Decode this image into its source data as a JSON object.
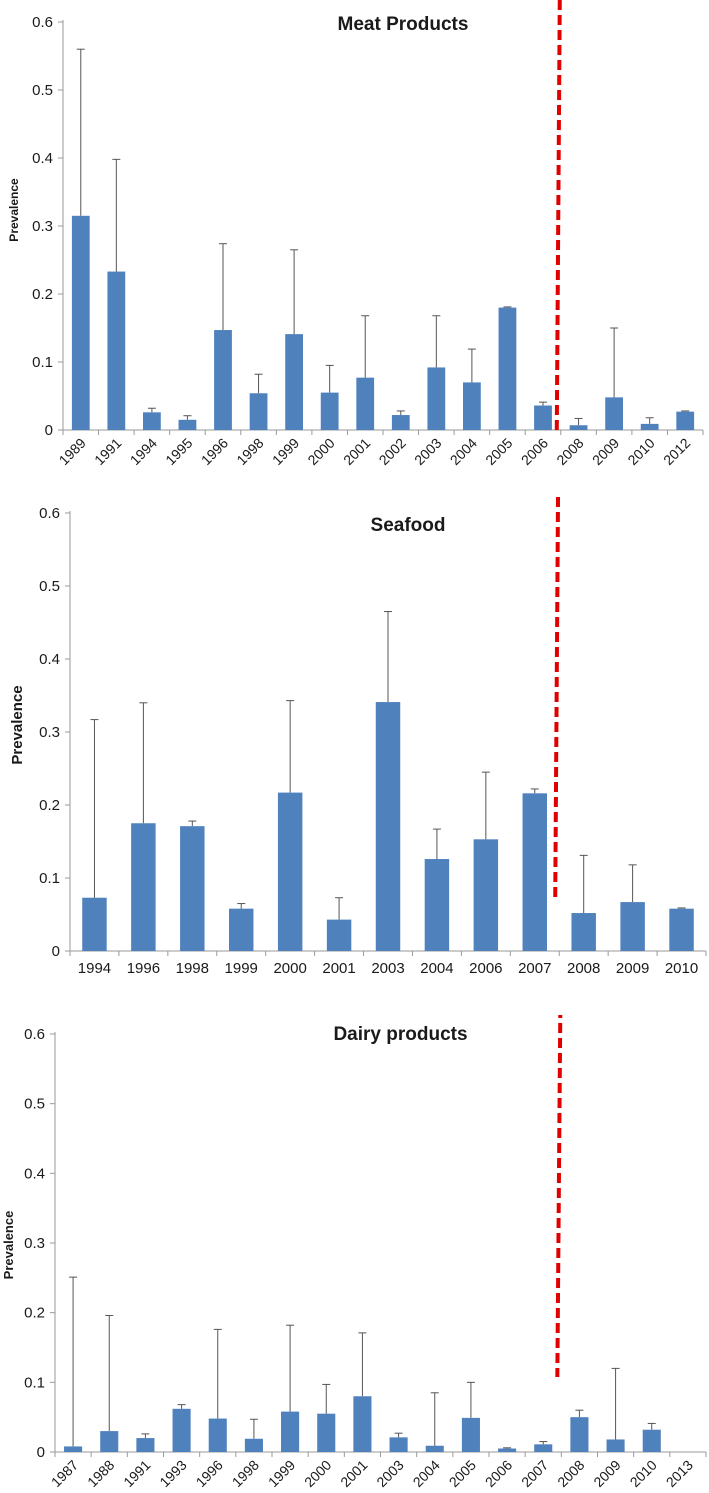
{
  "colors": {
    "bar": "#4f81bd",
    "error_bar": "#555555",
    "axis": "#9a9a9a",
    "divider": "#e00000"
  },
  "chart_data": [
    {
      "type": "bar",
      "title": "Meat Products",
      "ylabel": "Prevalence",
      "xlabel": "",
      "ylim": [
        0,
        0.6
      ],
      "yticks": [
        "0",
        "0.1",
        "0.2",
        "0.3",
        "0.4",
        "0.5",
        "0.6"
      ],
      "x_rotated": true,
      "divider_after": "2006",
      "categories": [
        "1989",
        "1991",
        "1994",
        "1995",
        "1996",
        "1998",
        "1999",
        "2000",
        "2001",
        "2002",
        "2003",
        "2004",
        "2005",
        "2006",
        "2008",
        "2009",
        "2010",
        "2012"
      ],
      "values": [
        0.315,
        0.233,
        0.026,
        0.015,
        0.147,
        0.054,
        0.141,
        0.055,
        0.077,
        0.022,
        0.092,
        0.07,
        0.18,
        0.036,
        0.007,
        0.048,
        0.009,
        0.027
      ],
      "error_upper": [
        0.56,
        0.398,
        0.032,
        0.021,
        0.274,
        0.082,
        0.265,
        0.095,
        0.168,
        0.028,
        0.168,
        0.119,
        0.181,
        0.041,
        0.017,
        0.15,
        0.018,
        0.028
      ]
    },
    {
      "type": "bar",
      "title": "Seafood",
      "ylabel": "Prevalence",
      "xlabel": "",
      "ylim": [
        0,
        0.6
      ],
      "yticks": [
        "0",
        "0.1",
        "0.2",
        "0.3",
        "0.4",
        "0.5",
        "0.6"
      ],
      "x_rotated": false,
      "divider_after": "2007",
      "categories": [
        "1994",
        "1996",
        "1998",
        "1999",
        "2000",
        "2001",
        "2003",
        "2004",
        "2006",
        "2007",
        "2008",
        "2009",
        "2010"
      ],
      "values": [
        0.073,
        0.175,
        0.171,
        0.058,
        0.217,
        0.043,
        0.341,
        0.126,
        0.153,
        0.216,
        0.052,
        0.067,
        0.058
      ],
      "error_upper": [
        0.317,
        0.34,
        0.178,
        0.065,
        0.343,
        0.073,
        0.465,
        0.167,
        0.245,
        0.222,
        0.131,
        0.118,
        0.059
      ]
    },
    {
      "type": "bar",
      "title": "Dairy products",
      "ylabel": "Prevalence",
      "xlabel": "",
      "ylim": [
        0,
        0.6
      ],
      "yticks": [
        "0",
        "0.1",
        "0.2",
        "0.3",
        "0.4",
        "0.5",
        "0.6"
      ],
      "x_rotated": true,
      "divider_after": "2007",
      "categories": [
        "1987",
        "1988",
        "1991",
        "1993",
        "1996",
        "1998",
        "1999",
        "2000",
        "2001",
        "2003",
        "2004",
        "2005",
        "2006",
        "2007",
        "2008",
        "2009",
        "2010",
        "2013"
      ],
      "values": [
        0.008,
        0.03,
        0.02,
        0.062,
        0.048,
        0.019,
        0.058,
        0.055,
        0.08,
        0.021,
        0.009,
        0.049,
        0.005,
        0.011,
        0.05,
        0.018,
        0.032,
        0.0
      ],
      "error_upper": [
        0.251,
        0.196,
        0.026,
        0.068,
        0.176,
        0.047,
        0.182,
        0.097,
        0.171,
        0.027,
        0.085,
        0.1,
        0.006,
        0.015,
        0.06,
        0.12,
        0.041,
        0.0
      ]
    }
  ]
}
